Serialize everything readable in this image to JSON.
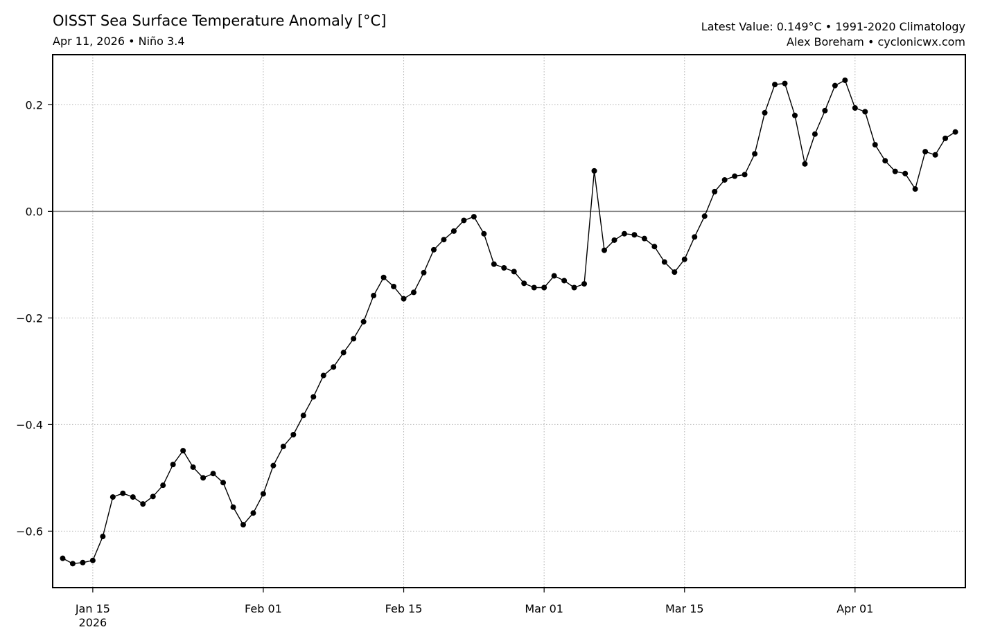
{
  "header": {
    "title": "OISST Sea Surface Temperature Anomaly [°C]",
    "subtitle": "Apr 11, 2026 • Niño 3.4",
    "latest_note": "Latest Value: 0.149°C • 1991-2020 Climatology",
    "credit": "Alex Boreham • cyclonicwx.com"
  },
  "chart_data": {
    "type": "line",
    "title": "OISST Sea Surface Temperature Anomaly [°C]",
    "subtitle": "Apr 11, 2026 • Niño 3.4",
    "xlabel": "",
    "ylabel": "",
    "x_start": "2026-01-12",
    "x_step_days": 1,
    "xlim": [
      "2026-01-11",
      "2026-04-12"
    ],
    "ylim": [
      -0.706,
      0.294
    ],
    "x_ticks": [
      {
        "date": "2026-01-15",
        "label": "Jan 15",
        "sublabel": "2026"
      },
      {
        "date": "2026-02-01",
        "label": "Feb 01"
      },
      {
        "date": "2026-02-15",
        "label": "Feb 15"
      },
      {
        "date": "2026-03-01",
        "label": "Mar 01"
      },
      {
        "date": "2026-03-15",
        "label": "Mar 15"
      },
      {
        "date": "2026-04-01",
        "label": "Apr 01"
      }
    ],
    "y_ticks": [
      {
        "value": -0.6,
        "label": "−0.6"
      },
      {
        "value": -0.4,
        "label": "−0.4"
      },
      {
        "value": -0.2,
        "label": "−0.2"
      },
      {
        "value": 0.0,
        "label": "0.0"
      },
      {
        "value": 0.2,
        "label": "0.2"
      }
    ],
    "grid": true,
    "zero_line": true,
    "line_color": "#000000",
    "marker_color": "#000000",
    "zero_line_color": "#808080",
    "grid_color": "#b0b0b0",
    "series": [
      {
        "values": [
          -0.651,
          -0.661,
          -0.659,
          -0.655,
          -0.61,
          -0.536,
          -0.529,
          -0.536,
          -0.549,
          -0.535,
          -0.514,
          -0.475,
          -0.449,
          -0.48,
          -0.5,
          -0.492,
          -0.509,
          -0.555,
          -0.588,
          -0.566,
          -0.53,
          -0.477,
          -0.441,
          -0.419,
          -0.383,
          -0.348,
          -0.308,
          -0.292,
          -0.265,
          -0.239,
          -0.207,
          -0.158,
          -0.124,
          -0.141,
          -0.164,
          -0.152,
          -0.115,
          -0.072,
          -0.053,
          -0.037,
          -0.017,
          -0.01,
          -0.042,
          -0.099,
          -0.106,
          -0.113,
          -0.135,
          -0.143,
          -0.143,
          -0.121,
          -0.13,
          -0.143,
          -0.136,
          0.076,
          -0.073,
          -0.054,
          -0.042,
          -0.044,
          -0.051,
          -0.066,
          -0.095,
          -0.114,
          -0.09,
          -0.048,
          -0.009,
          0.037,
          0.059,
          0.066,
          0.069,
          0.108,
          0.185,
          0.238,
          0.24,
          0.18,
          0.089,
          0.145,
          0.189,
          0.236,
          0.246,
          0.194,
          0.187,
          0.125,
          0.095,
          0.075,
          0.071,
          0.042,
          0.112,
          0.106,
          0.137,
          0.149
        ]
      }
    ]
  }
}
